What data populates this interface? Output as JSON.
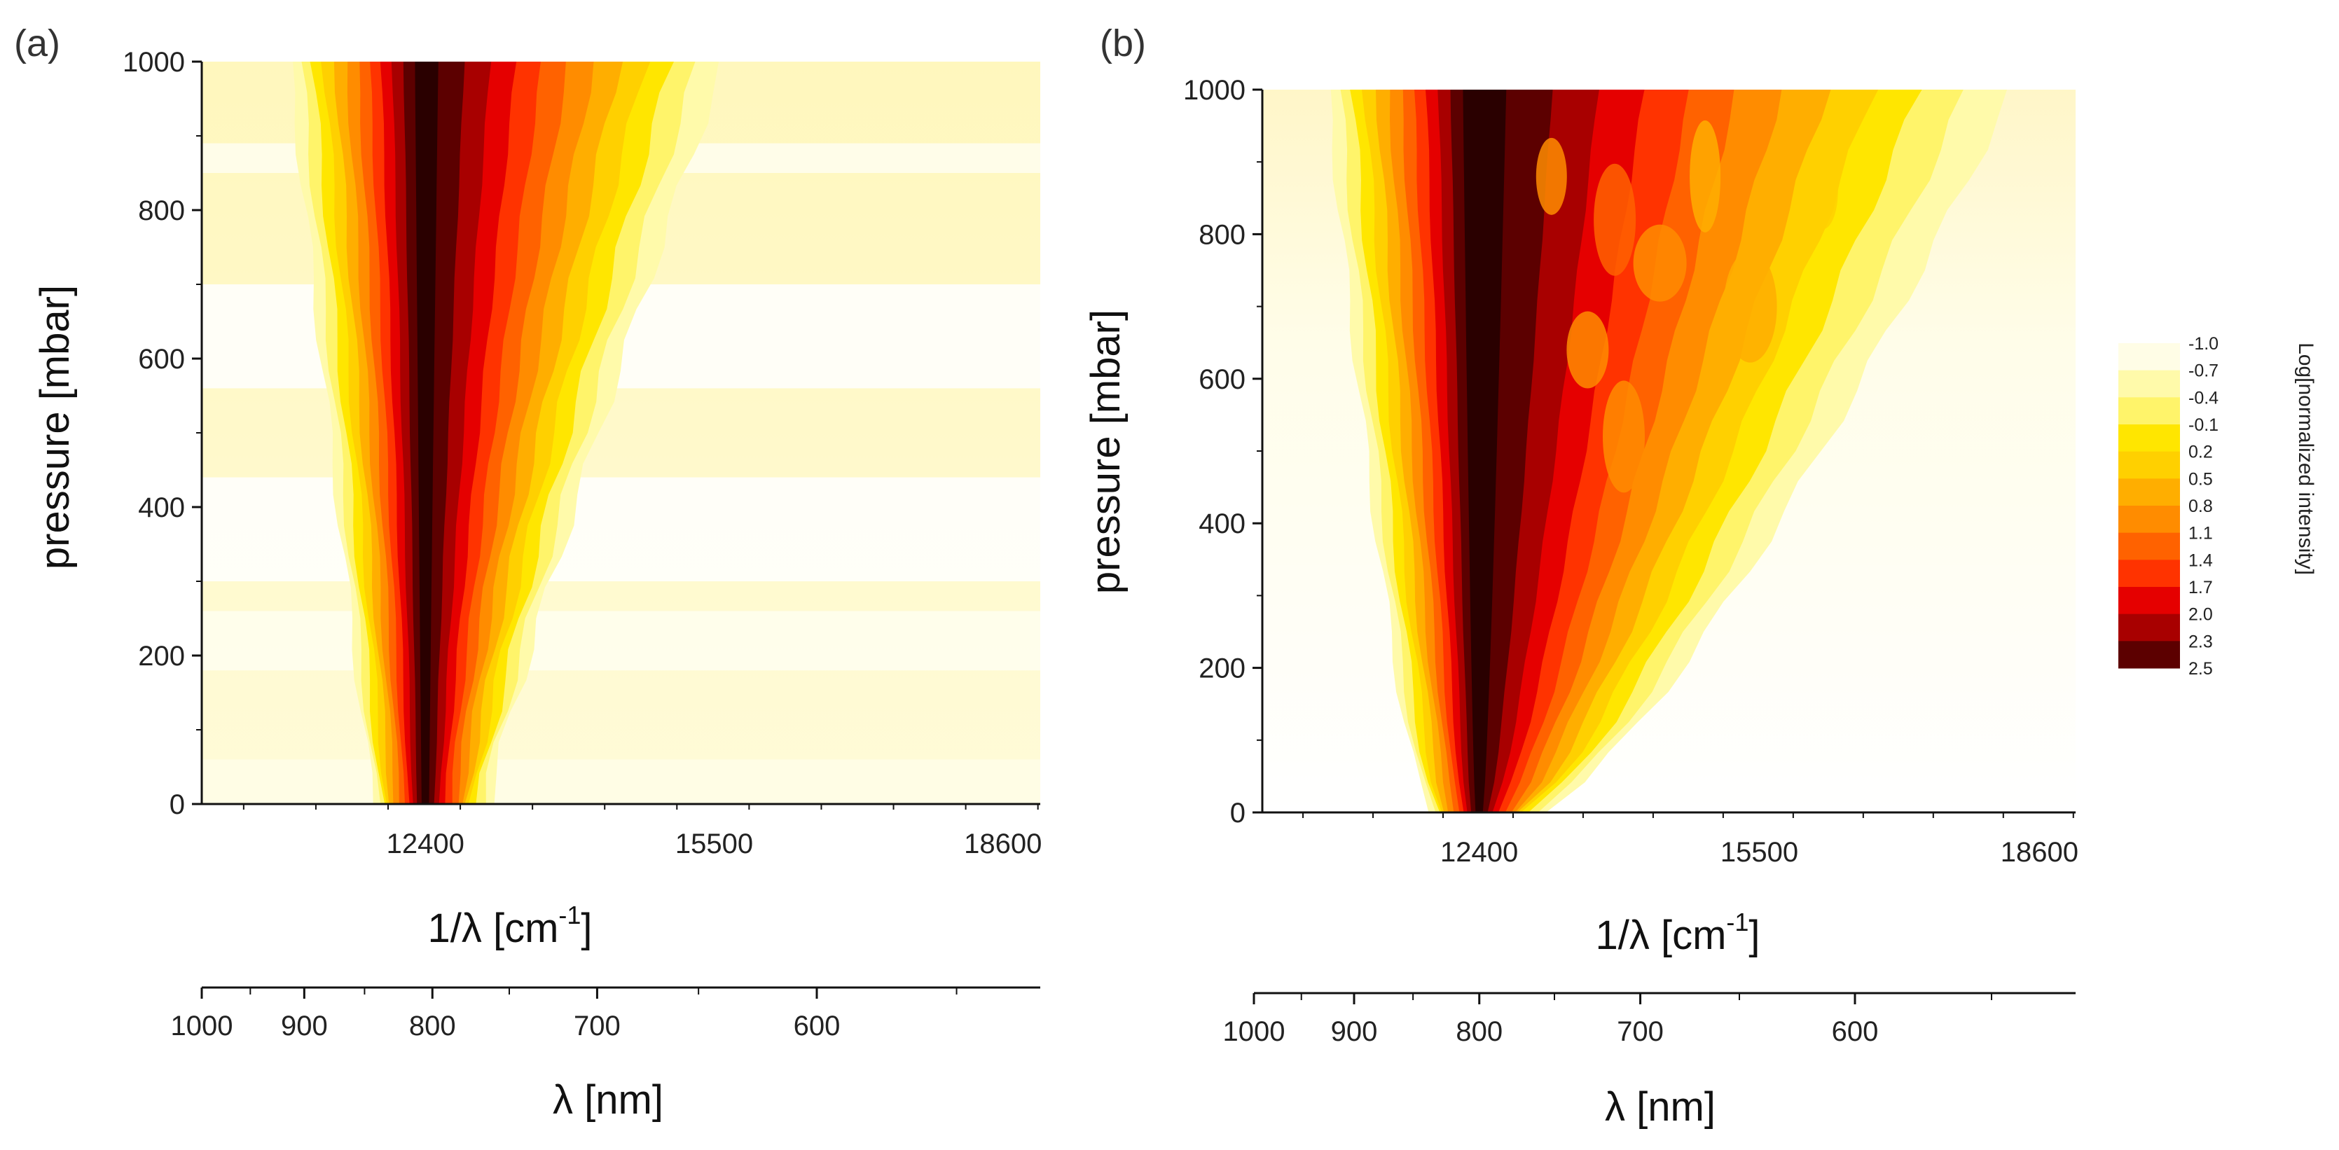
{
  "chart_data": [
    {
      "panel_label": "(a)",
      "type": "heatmap",
      "plot": "contour",
      "xlabel": "1/λ [cm",
      "xlabel_sup": "-1",
      "xlabel_end": "]",
      "ylabel": "pressure [mbar]",
      "x_ticks": [
        12400,
        15500,
        18600
      ],
      "x_tick_labels": [
        "12400",
        "15500",
        "18600"
      ],
      "xlim": [
        10000,
        19000
      ],
      "ylim": [
        0,
        1000
      ],
      "y_ticks": [
        0,
        200,
        400,
        600,
        800,
        1000
      ],
      "y_tick_labels": [
        "0",
        "200",
        "400",
        "600",
        "800",
        "1000"
      ],
      "secondary_xlabel": "λ [nm]",
      "secondary_ticks": [
        1000,
        900,
        800,
        700,
        600
      ],
      "secondary_tick_labels": [
        "1000",
        "900",
        "800",
        "700",
        "600"
      ],
      "peak_center": 12400,
      "peak_width_at_0": [
        11800,
        12900
      ],
      "peak_width_at_1000": [
        10700,
        15600
      ]
    },
    {
      "panel_label": "(b)",
      "type": "heatmap",
      "plot": "contour",
      "xlabel": "1/λ [cm",
      "xlabel_sup": "-1",
      "xlabel_end": "]",
      "ylabel": "pressure [mbar]",
      "x_ticks": [
        12400,
        15500,
        18600
      ],
      "x_tick_labels": [
        "12400",
        "15500",
        "18600"
      ],
      "xlim": [
        10000,
        19000
      ],
      "ylim": [
        0,
        1000
      ],
      "y_ticks": [
        0,
        200,
        400,
        600,
        800,
        1000
      ],
      "y_tick_labels": [
        "0",
        "200",
        "400",
        "600",
        "800",
        "1000"
      ],
      "secondary_xlabel": "λ [nm]",
      "secondary_ticks": [
        1000,
        900,
        800,
        700,
        600
      ],
      "secondary_tick_labels": [
        "1000",
        "900",
        "800",
        "700",
        "600"
      ],
      "peak_center": 12400,
      "colorbar": {
        "title": "Log[normalized intensity]",
        "levels": [
          "-1.0",
          "-0.7",
          "-0.4",
          "-0.1",
          "0.2",
          "0.5",
          "0.8",
          "1.1",
          "1.4",
          "1.7",
          "2.0",
          "2.3",
          "2.5"
        ],
        "colors": [
          "#fffde6",
          "#fffaaa",
          "#fff46a",
          "#ffe600",
          "#ffd000",
          "#ffae00",
          "#ff8c00",
          "#ff6200",
          "#ff3300",
          "#e50000",
          "#a80000",
          "#5c0000",
          "#2a0000"
        ]
      }
    }
  ]
}
